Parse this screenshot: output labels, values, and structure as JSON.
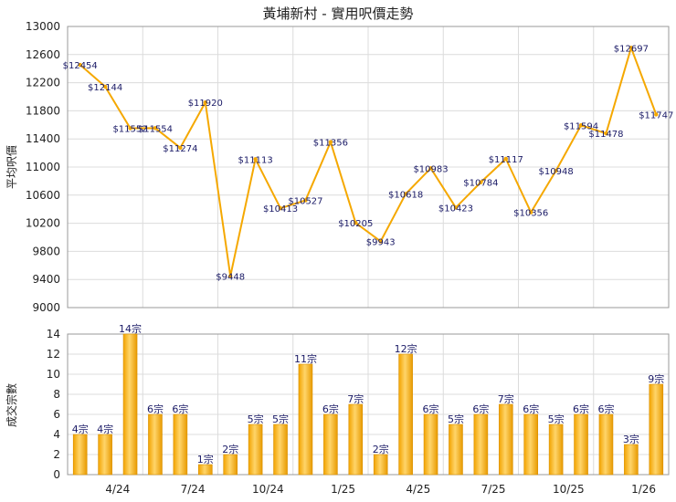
{
  "chart_data": [
    {
      "type": "line",
      "title": "黃埔新村 - 實用呎價走勢",
      "ylabel": "平均呎價",
      "ylim": [
        9000,
        13000
      ],
      "yticks": [
        9000,
        9400,
        9800,
        10200,
        10600,
        11000,
        11400,
        11800,
        12200,
        12600,
        13000
      ],
      "color": "#f5a800",
      "values": [
        12454,
        12144,
        11552,
        11554,
        11274,
        11920,
        9448,
        11113,
        10413,
        10527,
        11356,
        10205,
        9943,
        10618,
        10983,
        10423,
        10784,
        11117,
        10356,
        10948,
        11594,
        11478,
        12697,
        11747
      ],
      "labels": [
        "$12454",
        "$12144",
        "$11552",
        "$11554",
        "$11274",
        "$11920",
        "$9448",
        "$11113",
        "$10413",
        "$10527",
        "$11356",
        "$10205",
        "$9943",
        "$10618",
        "$10983",
        "$10423",
        "$10784",
        "$11117",
        "$10356",
        "$10948",
        "$11594",
        "$11478",
        "$12697",
        "$11747"
      ]
    },
    {
      "type": "bar",
      "ylabel": "成交宗數",
      "ylim": [
        0,
        14
      ],
      "yticks": [
        0,
        2,
        4,
        6,
        8,
        10,
        12,
        14
      ],
      "color": "#f5a800",
      "x_tick_labels": [
        "4/24",
        "7/24",
        "10/24",
        "1/25",
        "4/25",
        "7/25",
        "10/25",
        "1/26"
      ],
      "values": [
        4,
        4,
        14,
        6,
        6,
        1,
        2,
        5,
        5,
        11,
        6,
        7,
        2,
        12,
        6,
        5,
        6,
        7,
        6,
        5,
        6,
        6,
        3,
        9
      ],
      "labels": [
        "4宗",
        "4宗",
        "14宗",
        "6宗",
        "6宗",
        "1宗",
        "2宗",
        "5宗",
        "5宗",
        "11宗",
        "6宗",
        "7宗",
        "2宗",
        "12宗",
        "6宗",
        "5宗",
        "6宗",
        "7宗",
        "6宗",
        "5宗",
        "6宗",
        "6宗",
        "3宗",
        "9宗"
      ]
    }
  ]
}
